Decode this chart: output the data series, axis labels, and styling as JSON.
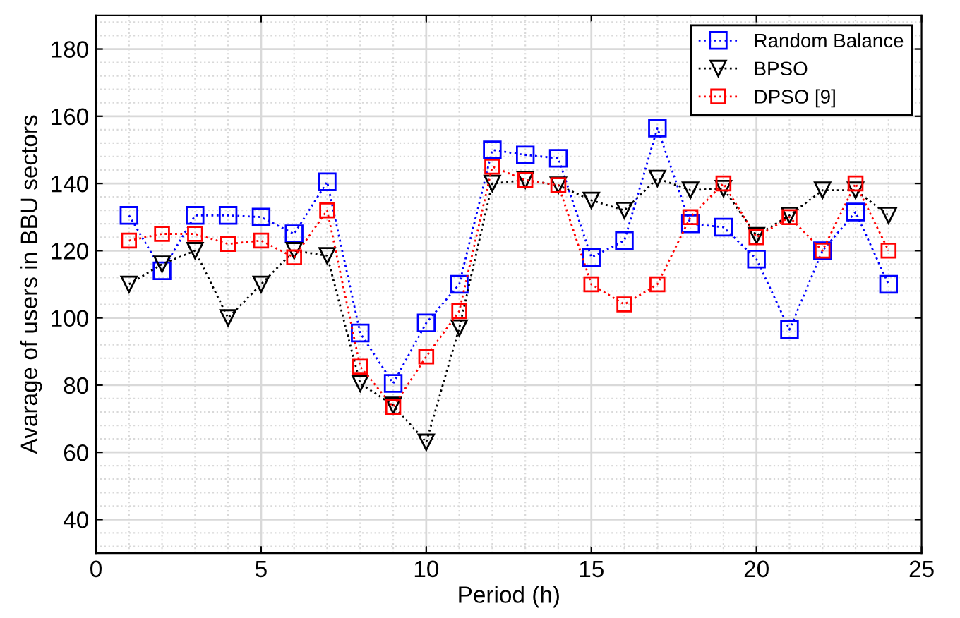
{
  "chart_data": {
    "type": "line",
    "xlabel": "Period (h)",
    "ylabel": "Avarage of users in BBU sectors",
    "x": [
      1,
      2,
      3,
      4,
      5,
      6,
      7,
      8,
      9,
      10,
      11,
      12,
      13,
      14,
      15,
      16,
      17,
      18,
      19,
      20,
      21,
      22,
      23,
      24
    ],
    "series": [
      {
        "name": "Random Balance",
        "color": "#0000ff",
        "marker": "square",
        "line_style": "dotted",
        "values": [
          130.5,
          114,
          130.5,
          130.5,
          130,
          125,
          140.5,
          95.5,
          80.5,
          98.5,
          110,
          150,
          148.5,
          147.5,
          118,
          123,
          156.5,
          128,
          127,
          117.5,
          96.5,
          120,
          131.5,
          110
        ]
      },
      {
        "name": "BPSO",
        "color": "#000000",
        "marker": "triangle",
        "line_style": "dotted",
        "values": [
          110,
          116,
          120,
          100,
          110,
          120,
          118.5,
          80.5,
          74,
          63,
          97,
          140,
          141,
          139.5,
          135,
          132,
          141.5,
          138,
          138.5,
          124.5,
          130.5,
          138,
          138,
          130.5
        ]
      },
      {
        "name": "DPSO [9]",
        "color": "#ff0000",
        "marker": "square",
        "line_style": "dotted",
        "values": [
          123,
          125,
          125,
          122,
          123,
          118,
          132,
          85.5,
          73.5,
          88.5,
          102,
          145,
          141,
          139.5,
          110,
          104,
          110,
          130,
          140,
          124,
          130,
          120,
          140,
          120
        ]
      }
    ],
    "xlim": [
      0,
      25
    ],
    "xticks": [
      0,
      5,
      10,
      15,
      20,
      25
    ],
    "ylim": [
      30,
      190
    ],
    "yticks": [
      40,
      60,
      80,
      100,
      120,
      140,
      160,
      180
    ],
    "grid": true,
    "legend": "top right"
  }
}
